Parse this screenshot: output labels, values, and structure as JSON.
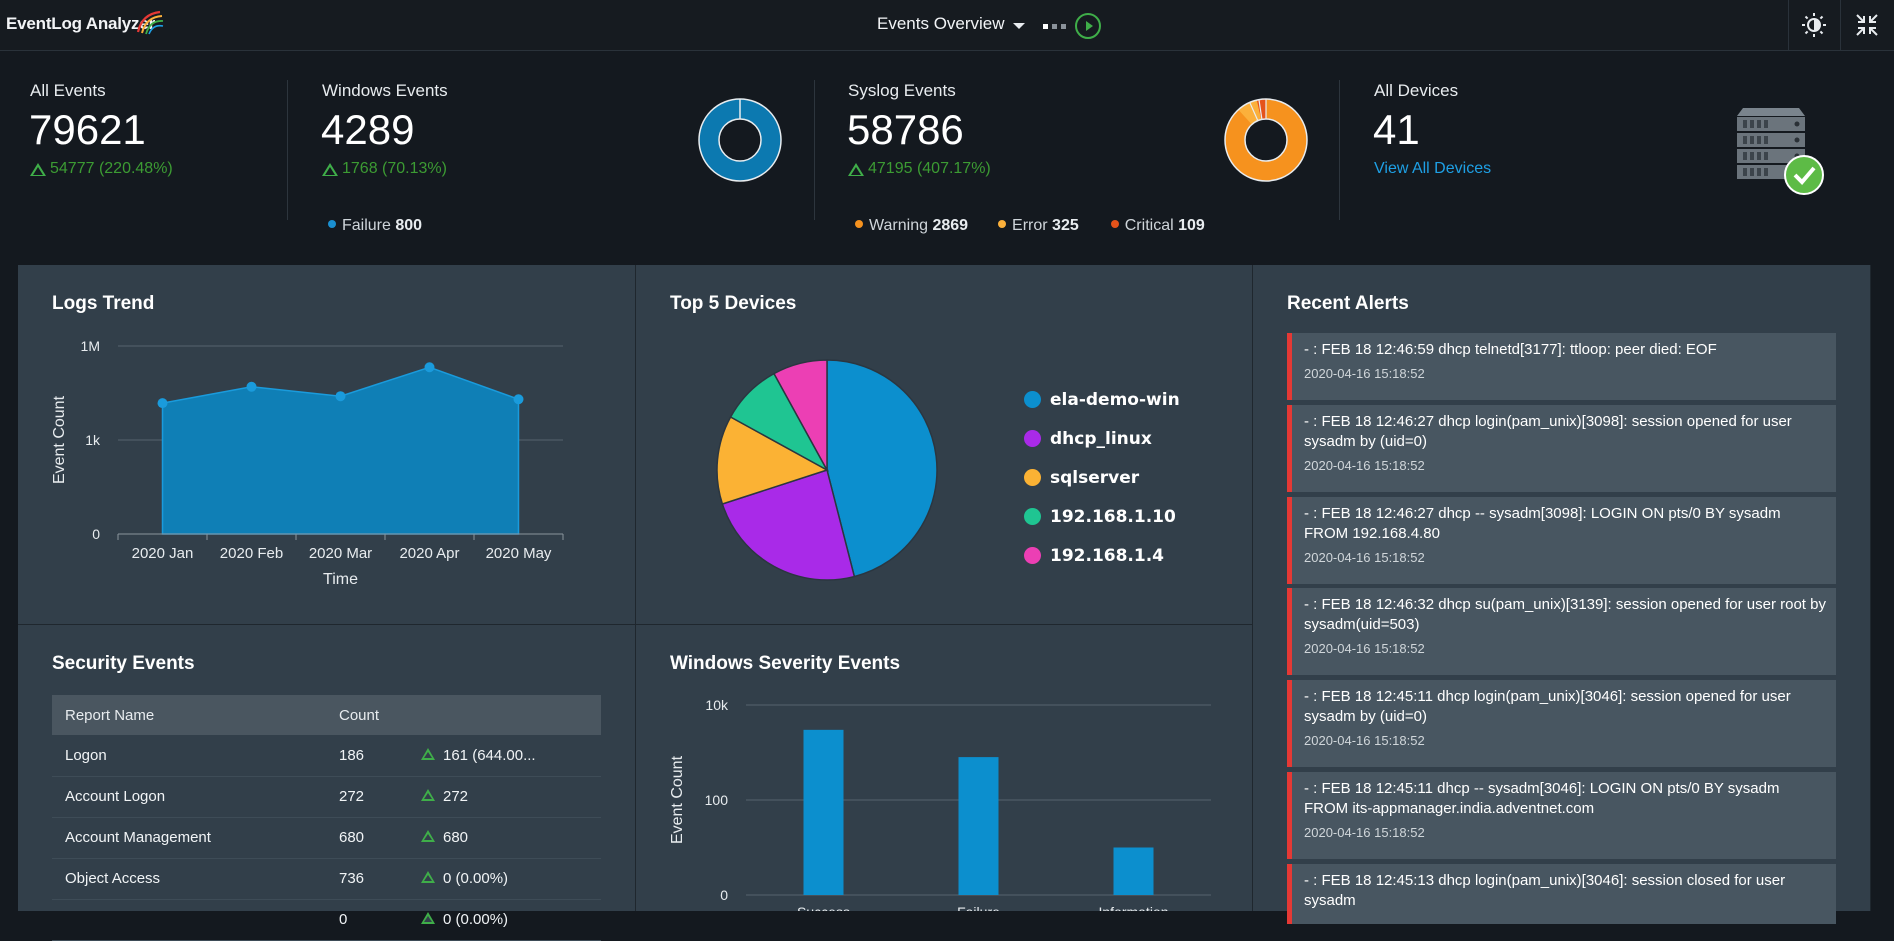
{
  "header": {
    "app_name": "EventLog Analyzer",
    "view_title": "Events Overview",
    "theme_icon": "sun-icon",
    "collapse_icon": "collapse-icon"
  },
  "kpis": {
    "all_events": {
      "title": "All Events",
      "value": "79621",
      "delta": "54777 (220.48%)"
    },
    "windows_events": {
      "title": "Windows Events",
      "value": "4289",
      "delta": "1768 (70.13%)",
      "legend": [
        {
          "label": "Failure",
          "value": "800",
          "color": "#1a8fd0"
        }
      ]
    },
    "syslog_events": {
      "title": "Syslog Events",
      "value": "58786",
      "delta": "47195 (407.17%)",
      "legend": [
        {
          "label": "Warning",
          "value": "2869",
          "color": "#f6921e"
        },
        {
          "label": "Error",
          "value": "325",
          "color": "#fbb03b"
        },
        {
          "label": "Critical",
          "value": "109",
          "color": "#e5531a"
        }
      ]
    },
    "all_devices": {
      "title": "All Devices",
      "value": "41",
      "link": "View All Devices"
    }
  },
  "logs_trend": {
    "title": "Logs Trend",
    "chart_data": {
      "type": "area",
      "title": "Logs Trend",
      "xlabel": "Time",
      "ylabel": "Event Count",
      "y_scale": "log",
      "y_ticks": [
        "0",
        "1k",
        "1M"
      ],
      "categories": [
        "2020 Jan",
        "2020 Feb",
        "2020 Mar",
        "2020 Apr",
        "2020 May"
      ],
      "values": [
        15000,
        50000,
        25000,
        210000,
        20000
      ],
      "grid": true
    }
  },
  "top_devices": {
    "title": "Top 5 Devices",
    "chart_data": {
      "type": "pie",
      "title": "Top 5 Devices",
      "labels": [
        "ela-demo-win",
        "dhcp_linux",
        "sqlserver",
        "192.168.1.10",
        "192.168.1.4"
      ],
      "values": [
        46,
        24,
        13,
        9,
        8
      ],
      "colors": [
        "#0c8fce",
        "#a92ae8",
        "#fbb234",
        "#1fc592",
        "#ec3fb4"
      ],
      "legend": "right"
    }
  },
  "recent_alerts": {
    "title": "Recent Alerts",
    "items": [
      {
        "message": "- : FEB 18 12:46:59 dhcp telnetd[3177]: ttloop: peer died: EOF",
        "time": "2020-04-16 15:18:52"
      },
      {
        "message": "- : FEB 18 12:46:27 dhcp login(pam_unix)[3098]: session opened for user sysadm by (uid=0)",
        "time": "2020-04-16 15:18:52"
      },
      {
        "message": "- : FEB 18 12:46:27 dhcp -- sysadm[3098]: LOGIN ON pts/0 BY sysadm FROM 192.168.4.80",
        "time": "2020-04-16 15:18:52"
      },
      {
        "message": "- : FEB 18 12:46:32 dhcp su(pam_unix)[3139]: session opened for user root by sysadm(uid=503)",
        "time": "2020-04-16 15:18:52"
      },
      {
        "message": "- : FEB 18 12:45:11 dhcp login(pam_unix)[3046]: session opened for user sysadm by (uid=0)",
        "time": "2020-04-16 15:18:52"
      },
      {
        "message": "- : FEB 18 12:45:11 dhcp -- sysadm[3046]: LOGIN ON pts/0 BY sysadm FROM its-appmanager.india.adventnet.com",
        "time": "2020-04-16 15:18:52"
      },
      {
        "message": "- : FEB 18 12:45:13 dhcp login(pam_unix)[3046]: session closed for user sysadm",
        "time": ""
      }
    ]
  },
  "security_events": {
    "title": "Security Events",
    "columns": [
      "Report Name",
      "Count",
      ""
    ],
    "rows": [
      {
        "name": "Logon",
        "count": "186",
        "delta": "161 (644.00..."
      },
      {
        "name": "Account Logon",
        "count": "272",
        "delta": "272"
      },
      {
        "name": "Account Management",
        "count": "680",
        "delta": "680"
      },
      {
        "name": "Object Access",
        "count": "736",
        "delta": "0 (0.00%)"
      },
      {
        "name": "",
        "count": "0",
        "delta": "0 (0.00%)"
      }
    ]
  },
  "windows_severity": {
    "title": "Windows Severity Events",
    "chart_data": {
      "type": "bar",
      "title": "Windows Severity Events",
      "ylabel": "Event Count",
      "y_scale": "log",
      "y_ticks": [
        "0",
        "100",
        "10k"
      ],
      "categories": [
        "Success",
        "Failure",
        "Information"
      ],
      "values": [
        3000,
        800,
        10
      ],
      "color": "#0c8fce"
    }
  }
}
